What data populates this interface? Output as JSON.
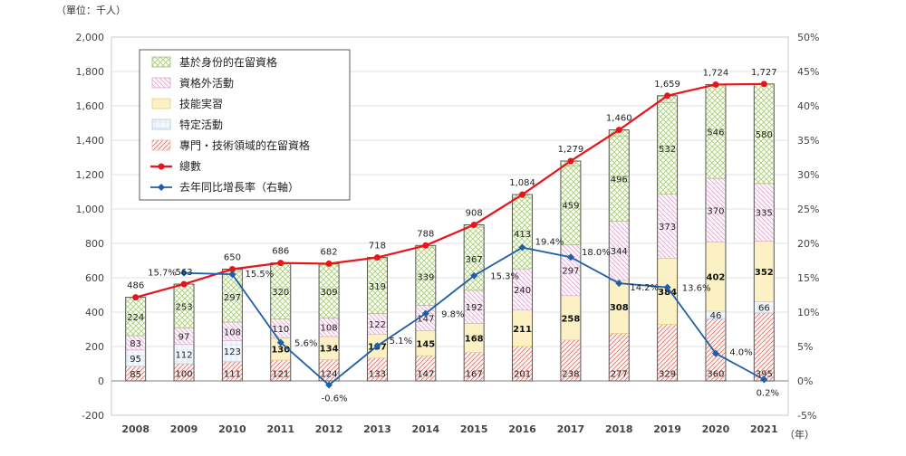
{
  "chart_data": {
    "type": "bar",
    "unit_label": "（單位：千人）",
    "x_unit": "（年）",
    "categories": [
      "2008",
      "2009",
      "2010",
      "2011",
      "2012",
      "2013",
      "2014",
      "2015",
      "2016",
      "2017",
      "2018",
      "2019",
      "2020",
      "2021"
    ],
    "series": [
      {
        "name": "專門・技術領域的在留資格",
        "values": [
          85,
          100,
          111,
          121,
          124,
          133,
          147,
          167,
          201,
          238,
          277,
          329,
          360,
          395
        ],
        "color": "#e8a0a0"
      },
      {
        "name": "特定活動",
        "values": [
          95,
          112,
          123,
          null,
          null,
          null,
          null,
          null,
          null,
          null,
          null,
          null,
          46,
          66
        ],
        "color": "#c9d9ee"
      },
      {
        "name": "技能実習",
        "values": [
          null,
          null,
          null,
          130,
          134,
          137,
          145,
          168,
          211,
          258,
          308,
          384,
          402,
          352
        ],
        "color": "#f5e08a"
      },
      {
        "name": "資格外活動",
        "values": [
          83,
          97,
          108,
          110,
          108,
          122,
          147,
          192,
          240,
          297,
          344,
          373,
          370,
          335
        ],
        "color": "#e9a8d6"
      },
      {
        "name": "基於身份的在留資格",
        "values": [
          224,
          253,
          297,
          320,
          309,
          319,
          339,
          367,
          413,
          459,
          496,
          532,
          546,
          580
        ],
        "color": "#b9dc8c"
      }
    ],
    "totals": {
      "name": "總數",
      "values": [
        486,
        563,
        650,
        686,
        682,
        718,
        788,
        908,
        1084,
        1279,
        1460,
        1659,
        1724,
        1727
      ],
      "color": "#e8141c"
    },
    "growth": {
      "name": "去年同比增長率（右軸）",
      "values": [
        null,
        15.7,
        15.5,
        5.6,
        -0.6,
        5.1,
        9.8,
        15.3,
        19.4,
        18.0,
        14.2,
        13.6,
        4.0,
        0.2
      ],
      "labels": [
        "",
        "15.7%",
        "15.5%",
        "5.6%",
        "-0.6%",
        "5.1%",
        "9.8%",
        "15.3%",
        "19.4%",
        "18.0%",
        "14.2%",
        "13.6%",
        "4.0%",
        "0.2%"
      ],
      "color": "#1f5fa8"
    },
    "y_left": {
      "min": -200,
      "max": 2000,
      "step": 200,
      "tick_labels": [
        "-200",
        "0",
        "200",
        "400",
        "600",
        "800",
        "1,000",
        "1,200",
        "1,400",
        "1,600",
        "1,800",
        "2,000"
      ]
    },
    "y_right": {
      "min": -5,
      "max": 50,
      "step": 5,
      "tick_labels": [
        "-5%",
        "0%",
        "5%",
        "10%",
        "15%",
        "20%",
        "25%",
        "30%",
        "35%",
        "40%",
        "45%",
        "50%"
      ]
    },
    "total_labels": [
      "486",
      "563",
      "650",
      "686",
      "682",
      "718",
      "788",
      "908",
      "1,084",
      "1,279",
      "1,460",
      "1,659",
      "1,724",
      "1,727"
    ],
    "bold_series": "技能実習",
    "legend_placement": "top-left",
    "legend_order": [
      "基於身份的在留資格",
      "資格外活動",
      "技能実習",
      "特定活動",
      "專門・技術領域的在留資格",
      "總數",
      "去年同比增長率（右軸）"
    ]
  }
}
